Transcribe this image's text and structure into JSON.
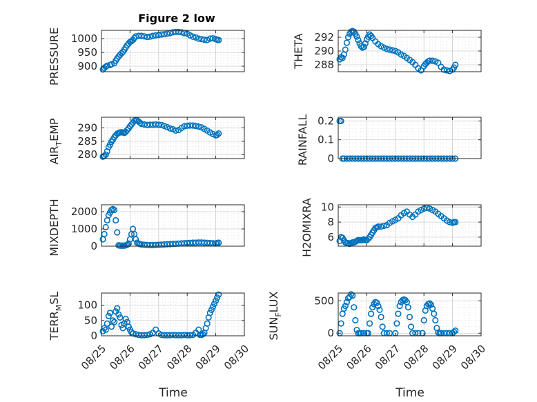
{
  "figure": {
    "title": "Figure 2 low"
  },
  "chart_data": [
    {
      "type": "scatter",
      "title": "Figure 2 low",
      "ylabel": "PRESSURE",
      "ylim": [
        880,
        1030
      ],
      "yticks": [
        900,
        950,
        1000
      ],
      "xlim": [
        0,
        5
      ],
      "x": [
        0.05,
        0.1,
        0.15,
        0.2,
        0.3,
        0.35,
        0.45,
        0.5,
        0.55,
        0.6,
        0.65,
        0.7,
        0.75,
        0.8,
        0.85,
        0.9,
        0.95,
        1.0,
        1.05,
        1.1,
        1.15,
        1.2,
        1.3,
        1.4,
        1.5,
        1.6,
        1.7,
        1.8,
        1.9,
        2.0,
        2.1,
        2.2,
        2.3,
        2.4,
        2.5,
        2.6,
        2.7,
        2.8,
        2.9,
        3.0,
        3.1,
        3.2,
        3.3,
        3.4,
        3.5,
        3.6,
        3.7,
        3.8,
        3.9,
        4.0,
        4.05,
        4.1
      ],
      "y": [
        888,
        893,
        898,
        902,
        904,
        907,
        911,
        920,
        928,
        935,
        941,
        947,
        952,
        960,
        968,
        976,
        982,
        988,
        991,
        995,
        1002,
        1008,
        1010,
        1010,
        1008,
        1006,
        1007,
        1010,
        1012,
        1013,
        1015,
        1016,
        1018,
        1020,
        1023,
        1024,
        1024,
        1023,
        1020,
        1018,
        1012,
        1007,
        1004,
        1000,
        998,
        996,
        995,
        1000,
        1001,
        998,
        996,
        995
      ]
    },
    {
      "type": "scatter",
      "ylabel": "THETA",
      "ylim": [
        287,
        293
      ],
      "yticks": [
        288,
        290,
        292
      ],
      "xlim": [
        0,
        5
      ],
      "x": [
        0.05,
        0.1,
        0.15,
        0.2,
        0.25,
        0.3,
        0.35,
        0.4,
        0.45,
        0.5,
        0.55,
        0.6,
        0.65,
        0.7,
        0.75,
        0.8,
        0.85,
        0.9,
        0.95,
        1.0,
        1.05,
        1.1,
        1.15,
        1.2,
        1.3,
        1.4,
        1.5,
        1.6,
        1.7,
        1.8,
        1.9,
        2.0,
        2.1,
        2.2,
        2.3,
        2.4,
        2.5,
        2.6,
        2.7,
        2.8,
        2.9,
        3.0,
        3.05,
        3.1,
        3.15,
        3.2,
        3.3,
        3.4,
        3.5,
        3.6,
        3.7,
        3.8,
        3.9,
        4.0,
        4.05,
        4.1
      ],
      "y": [
        288.8,
        289.1,
        289.0,
        289.5,
        290.2,
        291.2,
        292.0,
        292.5,
        292.8,
        292.9,
        292.8,
        292.5,
        292.1,
        291.6,
        291.1,
        290.7,
        290.5,
        290.6,
        291.1,
        291.7,
        292.1,
        292.4,
        292.2,
        291.9,
        291.4,
        291.0,
        290.7,
        290.5,
        290.3,
        290.2,
        290.1,
        290.0,
        289.8,
        289.5,
        289.3,
        289.0,
        288.7,
        288.4,
        288.0,
        287.5,
        287.2,
        287.8,
        288.1,
        288.3,
        288.5,
        288.6,
        288.6,
        288.5,
        288.3,
        287.7,
        287.3,
        287.2,
        287.1,
        287.3,
        287.6,
        288.0
      ]
    },
    {
      "type": "scatter",
      "ylabel": "AIR_TEMP",
      "ylim": [
        278.5,
        294
      ],
      "yticks": [
        280,
        285,
        290
      ],
      "xlim": [
        0,
        5
      ],
      "x": [
        0.05,
        0.1,
        0.15,
        0.2,
        0.25,
        0.3,
        0.35,
        0.4,
        0.45,
        0.5,
        0.55,
        0.6,
        0.65,
        0.7,
        0.75,
        0.8,
        0.85,
        0.9,
        0.95,
        1.0,
        1.05,
        1.1,
        1.15,
        1.2,
        1.25,
        1.3,
        1.35,
        1.4,
        1.5,
        1.6,
        1.7,
        1.8,
        1.9,
        2.0,
        2.1,
        2.2,
        2.3,
        2.4,
        2.5,
        2.6,
        2.7,
        2.8,
        2.9,
        3.0,
        3.1,
        3.2,
        3.3,
        3.4,
        3.5,
        3.6,
        3.7,
        3.8,
        3.9,
        4.0,
        4.05,
        4.1
      ],
      "y": [
        279.2,
        279.5,
        280.0,
        281.2,
        282.8,
        283.7,
        284.8,
        285.6,
        286.5,
        287.2,
        287.8,
        288.1,
        288.3,
        288.4,
        288.3,
        288.1,
        288.5,
        289.2,
        289.8,
        290.6,
        291.3,
        292.0,
        292.6,
        293.0,
        292.8,
        292.4,
        291.9,
        291.5,
        291.3,
        291.1,
        291.2,
        291.2,
        291.3,
        291.2,
        291.1,
        290.7,
        290.3,
        289.8,
        289.5,
        289.0,
        289.2,
        290.0,
        290.6,
        290.8,
        290.9,
        290.9,
        290.7,
        290.5,
        290.2,
        289.6,
        289.0,
        288.3,
        287.7,
        287.2,
        287.4,
        287.9
      ]
    },
    {
      "type": "scatter",
      "ylabel": "RAINFALL",
      "ylim": [
        0,
        0.22
      ],
      "yticks": [
        0,
        0.1,
        0.2
      ],
      "xlim": [
        0,
        5
      ],
      "x": [
        0.05,
        0.1,
        0.15,
        0.2,
        0.3,
        0.4,
        0.5,
        0.6,
        0.7,
        0.8,
        0.9,
        1.0,
        1.1,
        1.2,
        1.3,
        1.4,
        1.5,
        1.6,
        1.7,
        1.8,
        1.9,
        2.0,
        2.1,
        2.2,
        2.3,
        2.4,
        2.5,
        2.6,
        2.7,
        2.8,
        2.9,
        3.0,
        3.1,
        3.2,
        3.3,
        3.4,
        3.5,
        3.6,
        3.7,
        3.8,
        3.9,
        4.0,
        4.1
      ],
      "y": [
        0.2,
        0.2,
        0,
        0,
        0,
        0,
        0,
        0,
        0,
        0,
        0,
        0,
        0,
        0,
        0,
        0,
        0,
        0,
        0,
        0,
        0,
        0,
        0,
        0,
        0,
        0,
        0,
        0,
        0,
        0,
        0,
        0,
        0,
        0,
        0,
        0,
        0,
        0,
        0,
        0,
        0,
        0,
        0
      ]
    },
    {
      "type": "scatter",
      "ylabel": "MIXDEPTH",
      "ylim": [
        0,
        2400
      ],
      "yticks": [
        0,
        1000,
        2000
      ],
      "xlim": [
        0,
        5
      ],
      "x": [
        0.05,
        0.1,
        0.15,
        0.2,
        0.25,
        0.3,
        0.35,
        0.4,
        0.45,
        0.5,
        0.55,
        0.6,
        0.65,
        0.7,
        0.75,
        0.8,
        0.85,
        0.9,
        0.95,
        1.0,
        1.05,
        1.1,
        1.15,
        1.2,
        1.25,
        1.3,
        1.35,
        1.4,
        1.5,
        1.6,
        1.7,
        1.8,
        1.9,
        2.0,
        2.1,
        2.2,
        2.3,
        2.4,
        2.5,
        2.6,
        2.7,
        2.8,
        2.9,
        3.0,
        3.1,
        3.2,
        3.3,
        3.4,
        3.5,
        3.6,
        3.7,
        3.8,
        3.9,
        4.0,
        4.05,
        4.1
      ],
      "y": [
        400,
        700,
        1100,
        1500,
        1800,
        1950,
        2100,
        2150,
        2100,
        1500,
        800,
        50,
        30,
        30,
        30,
        30,
        50,
        80,
        150,
        400,
        700,
        1000,
        700,
        400,
        200,
        150,
        120,
        100,
        80,
        70,
        60,
        60,
        70,
        80,
        90,
        100,
        110,
        120,
        130,
        140,
        150,
        160,
        170,
        180,
        190,
        200,
        200,
        210,
        210,
        200,
        190,
        180,
        170,
        160,
        180,
        200
      ]
    },
    {
      "type": "scatter",
      "ylabel": "H2OMIXRA",
      "ylim": [
        4.8,
        10.3
      ],
      "yticks": [
        6,
        8,
        10
      ],
      "xlim": [
        0,
        5
      ],
      "x": [
        0.05,
        0.1,
        0.15,
        0.2,
        0.25,
        0.3,
        0.35,
        0.4,
        0.45,
        0.5,
        0.55,
        0.6,
        0.65,
        0.7,
        0.75,
        0.8,
        0.85,
        0.9,
        0.95,
        1.0,
        1.05,
        1.1,
        1.15,
        1.2,
        1.25,
        1.3,
        1.35,
        1.4,
        1.5,
        1.6,
        1.7,
        1.8,
        1.9,
        2.0,
        2.1,
        2.2,
        2.3,
        2.4,
        2.5,
        2.6,
        2.7,
        2.8,
        2.9,
        3.0,
        3.1,
        3.2,
        3.3,
        3.4,
        3.5,
        3.6,
        3.7,
        3.8,
        3.9,
        4.0,
        4.05,
        4.1
      ],
      "y": [
        5.5,
        6.0,
        5.9,
        5.6,
        5.3,
        5.2,
        5.2,
        5.1,
        5.2,
        5.3,
        5.3,
        5.4,
        5.5,
        5.6,
        5.6,
        5.6,
        5.6,
        5.7,
        5.6,
        5.6,
        5.8,
        6.0,
        6.3,
        6.6,
        6.9,
        7.2,
        7.3,
        7.4,
        7.4,
        7.5,
        7.6,
        7.9,
        8.1,
        8.3,
        8.5,
        8.9,
        9.2,
        9.4,
        9.0,
        8.7,
        9.0,
        9.4,
        9.6,
        9.8,
        9.9,
        9.8,
        9.6,
        9.4,
        9.1,
        8.8,
        8.5,
        8.2,
        8.0,
        7.9,
        8.0,
        8.0
      ]
    },
    {
      "type": "scatter",
      "ylabel": "TERR_MSL",
      "ylim": [
        0,
        140
      ],
      "yticks": [
        0,
        50,
        100
      ],
      "xlim": [
        0,
        5
      ],
      "x": [
        0.05,
        0.1,
        0.15,
        0.2,
        0.25,
        0.3,
        0.35,
        0.4,
        0.45,
        0.5,
        0.55,
        0.6,
        0.65,
        0.7,
        0.75,
        0.8,
        0.85,
        0.9,
        0.95,
        1.0,
        1.05,
        1.1,
        1.2,
        1.3,
        1.4,
        1.5,
        1.6,
        1.7,
        1.8,
        1.9,
        2.0,
        2.1,
        2.2,
        2.3,
        2.4,
        2.5,
        2.6,
        2.7,
        2.8,
        2.9,
        3.0,
        3.1,
        3.2,
        3.3,
        3.4,
        3.45,
        3.5,
        3.55,
        3.6,
        3.65,
        3.7,
        3.75,
        3.8,
        3.85,
        3.9,
        3.95,
        4.0,
        4.05,
        4.1
      ],
      "y": [
        15,
        25,
        20,
        40,
        65,
        75,
        30,
        50,
        45,
        80,
        90,
        70,
        60,
        35,
        25,
        40,
        55,
        45,
        30,
        20,
        12,
        8,
        5,
        3,
        2,
        2,
        3,
        5,
        10,
        20,
        8,
        3,
        2,
        2,
        2,
        3,
        2,
        2,
        2,
        3,
        2,
        2,
        3,
        10,
        20,
        3,
        3,
        5,
        10,
        25,
        40,
        60,
        75,
        85,
        95,
        105,
        115,
        125,
        135
      ]
    },
    {
      "type": "scatter",
      "ylabel": "SUN_FLUX",
      "ylim": [
        -40,
        620
      ],
      "yticks": [
        0,
        500
      ],
      "xlim": [
        0,
        5
      ],
      "x": [
        0.05,
        0.1,
        0.15,
        0.2,
        0.25,
        0.3,
        0.35,
        0.4,
        0.45,
        0.5,
        0.55,
        0.6,
        0.65,
        0.7,
        0.75,
        0.8,
        0.9,
        1.0,
        1.05,
        1.1,
        1.15,
        1.2,
        1.25,
        1.3,
        1.35,
        1.4,
        1.45,
        1.5,
        1.55,
        1.6,
        1.7,
        1.8,
        2.0,
        2.05,
        2.1,
        2.15,
        2.2,
        2.25,
        2.3,
        2.35,
        2.4,
        2.45,
        2.5,
        2.55,
        2.6,
        2.7,
        2.8,
        2.95,
        3.0,
        3.05,
        3.1,
        3.15,
        3.2,
        3.25,
        3.3,
        3.35,
        3.4,
        3.45,
        3.5,
        3.55,
        3.6,
        3.7,
        3.8,
        3.9,
        4.0,
        4.05,
        4.1
      ],
      "y": [
        0,
        150,
        300,
        380,
        420,
        480,
        540,
        560,
        600,
        580,
        400,
        200,
        50,
        0,
        0,
        0,
        0,
        0,
        0,
        150,
        300,
        400,
        450,
        480,
        470,
        420,
        360,
        250,
        100,
        0,
        0,
        0,
        0,
        150,
        300,
        420,
        480,
        510,
        520,
        510,
        480,
        400,
        250,
        100,
        0,
        0,
        0,
        0,
        200,
        350,
        420,
        450,
        460,
        440,
        380,
        300,
        200,
        80,
        10,
        0,
        0,
        0,
        0,
        0,
        0,
        20,
        40
      ]
    }
  ],
  "labels": {
    "p0_ylabel": "PRESSURE",
    "p1_ylabel": "THETA",
    "p2_ylabel_a": "AIR",
    "p2_ylabel_sub": "T",
    "p2_ylabel_b": "EMP",
    "p3_ylabel": "RAINFALL",
    "p4_ylabel": "MIXDEPTH",
    "p5_ylabel": "H2OMIXRA",
    "p6_ylabel_a": "TERR",
    "p6_ylabel_sub": "M",
    "p6_ylabel_b": "SL",
    "p7_ylabel_a": "SUN",
    "p7_ylabel_sub": "F",
    "p7_ylabel_b": "LUX"
  },
  "xaxis": {
    "label": "Time",
    "ticks": [
      "08/25",
      "08/26",
      "08/27",
      "08/28",
      "08/29",
      "08/30"
    ]
  },
  "colors": {
    "marker": "#0072BD"
  }
}
